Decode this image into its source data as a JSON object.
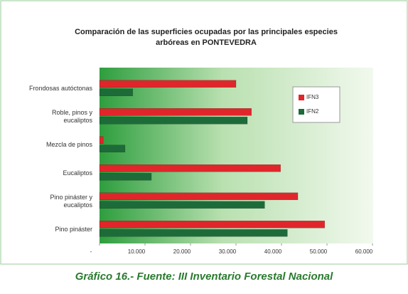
{
  "chart_data": {
    "type": "barh",
    "title": "Comparación de las superficies ocupadas por las principales especies arbóreas en PONTEVEDRA",
    "caption": "Gráfico 16.- Fuente: III Inventario Forestal Nacional",
    "categories": [
      "Frondosas autóctonas",
      "Roble, pinos y eucaliptos",
      "Mezcla de pinos",
      "Eucaliptos",
      "Pino pináster y eucaliptos",
      "Pino pináster"
    ],
    "series": [
      {
        "name": "IFN3",
        "color": "#e0262b",
        "values": [
          30000,
          33400,
          800,
          39800,
          43600,
          49500
        ]
      },
      {
        "name": "IFN2",
        "color": "#1e6b3a",
        "values": [
          7300,
          32500,
          5600,
          11400,
          36300,
          41300
        ]
      }
    ],
    "xlim": [
      0,
      60000
    ],
    "xticks": [
      {
        "value": 0,
        "label": "-"
      },
      {
        "value": 10000,
        "label": "10.000"
      },
      {
        "value": 20000,
        "label": "20.000"
      },
      {
        "value": 30000,
        "label": "30.000"
      },
      {
        "value": 40000,
        "label": "40.000"
      },
      {
        "value": 50000,
        "label": "50.000"
      },
      {
        "value": 60000,
        "label": "60.000"
      }
    ],
    "legend": "top-right"
  }
}
